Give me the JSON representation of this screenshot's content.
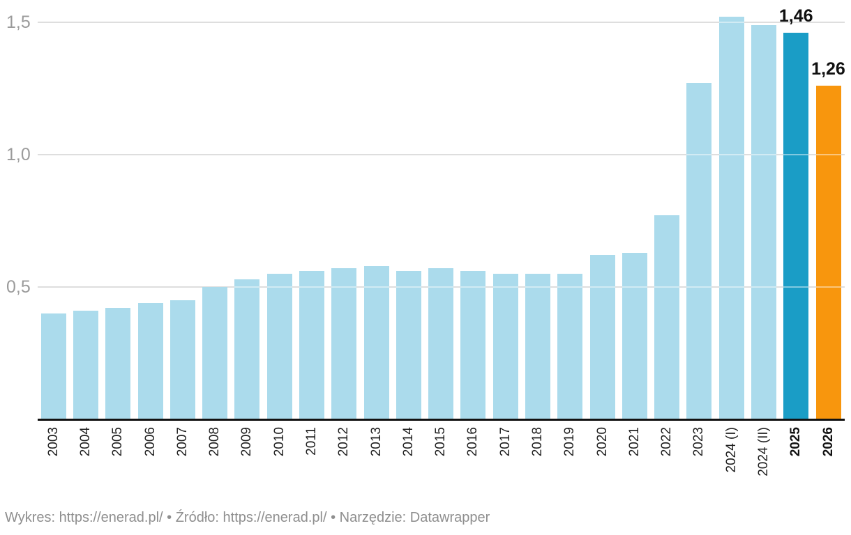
{
  "chart_data": {
    "type": "bar",
    "categories": [
      "2003",
      "2004",
      "2005",
      "2006",
      "2007",
      "2008",
      "2009",
      "2010",
      "2011",
      "2012",
      "2013",
      "2014",
      "2015",
      "2016",
      "2017",
      "2018",
      "2019",
      "2020",
      "2021",
      "2022",
      "2023",
      "2024 (I)",
      "2024 (II)",
      "2025",
      "2026"
    ],
    "values": [
      0.4,
      0.41,
      0.42,
      0.44,
      0.45,
      0.5,
      0.53,
      0.55,
      0.56,
      0.57,
      0.58,
      0.56,
      0.57,
      0.56,
      0.55,
      0.55,
      0.55,
      0.62,
      0.63,
      0.77,
      1.27,
      1.52,
      1.49,
      1.46,
      1.26
    ],
    "title": "",
    "xlabel": "",
    "ylabel": "",
    "ylim": [
      0,
      1.58
    ],
    "grid": "horizontal",
    "legend_position": "none",
    "y_ticks": [
      {
        "value": 0.5,
        "label": "0,5"
      },
      {
        "value": 1.0,
        "label": "1,0"
      },
      {
        "value": 1.5,
        "label": "1,5"
      }
    ],
    "data_labels": {
      "2025": "1,46",
      "2026": "1,26"
    },
    "bold_categories": [
      "2025",
      "2026"
    ],
    "colors": {
      "default_bar": "#abdbec",
      "highlight": {
        "2025": "#1a9dc6",
        "2026": "#f8960d"
      },
      "gridline": "#dedede",
      "axis_line": "#111111",
      "y_tick_text": "#9b9b9b",
      "x_tick_text": "#1f1f1f",
      "data_label_text": "#111111"
    }
  },
  "footer": {
    "chart_prefix": "Wykres: ",
    "chart_link": "https://enerad.pl/",
    "sep1": " • ",
    "source_prefix": "Źródło: ",
    "source_link": "https://enerad.pl/",
    "sep2": " • ",
    "tool_prefix": "Narzędzie: ",
    "tool_link": "Datawrapper"
  }
}
